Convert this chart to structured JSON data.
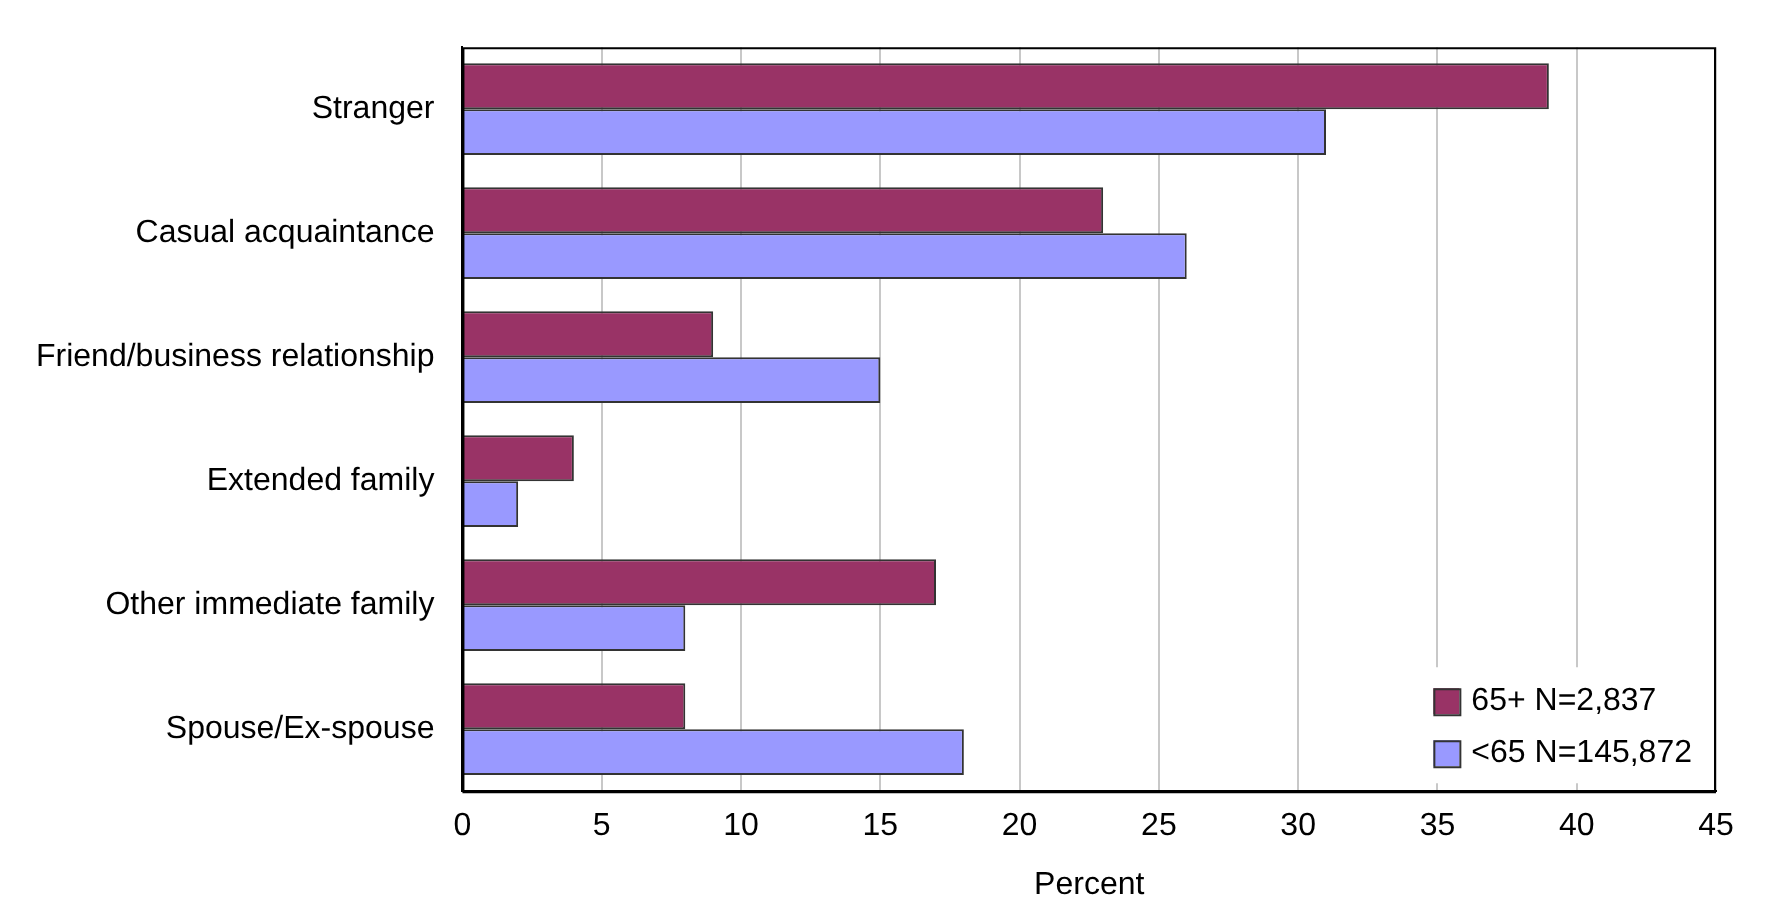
{
  "chart_data": {
    "type": "bar",
    "orientation": "horizontal",
    "xlabel": "Percent",
    "categories": [
      "Stranger",
      "Casual acquaintance",
      "Friend/business relationship",
      "Extended family",
      "Other immediate family",
      "Spouse/Ex-spouse"
    ],
    "series": [
      {
        "name": "65+ N=2,837",
        "color": "#993366",
        "values": [
          39,
          23,
          9,
          4,
          17,
          8
        ]
      },
      {
        "name": "<65 N=145,872",
        "color": "#9999ff",
        "values": [
          31,
          26,
          15,
          2,
          8,
          18
        ]
      }
    ],
    "xlim": [
      0,
      45
    ],
    "xticks": [
      0,
      5,
      10,
      15,
      20,
      25,
      30,
      35,
      40,
      45
    ],
    "grid": "x",
    "legend": "bottom right"
  }
}
